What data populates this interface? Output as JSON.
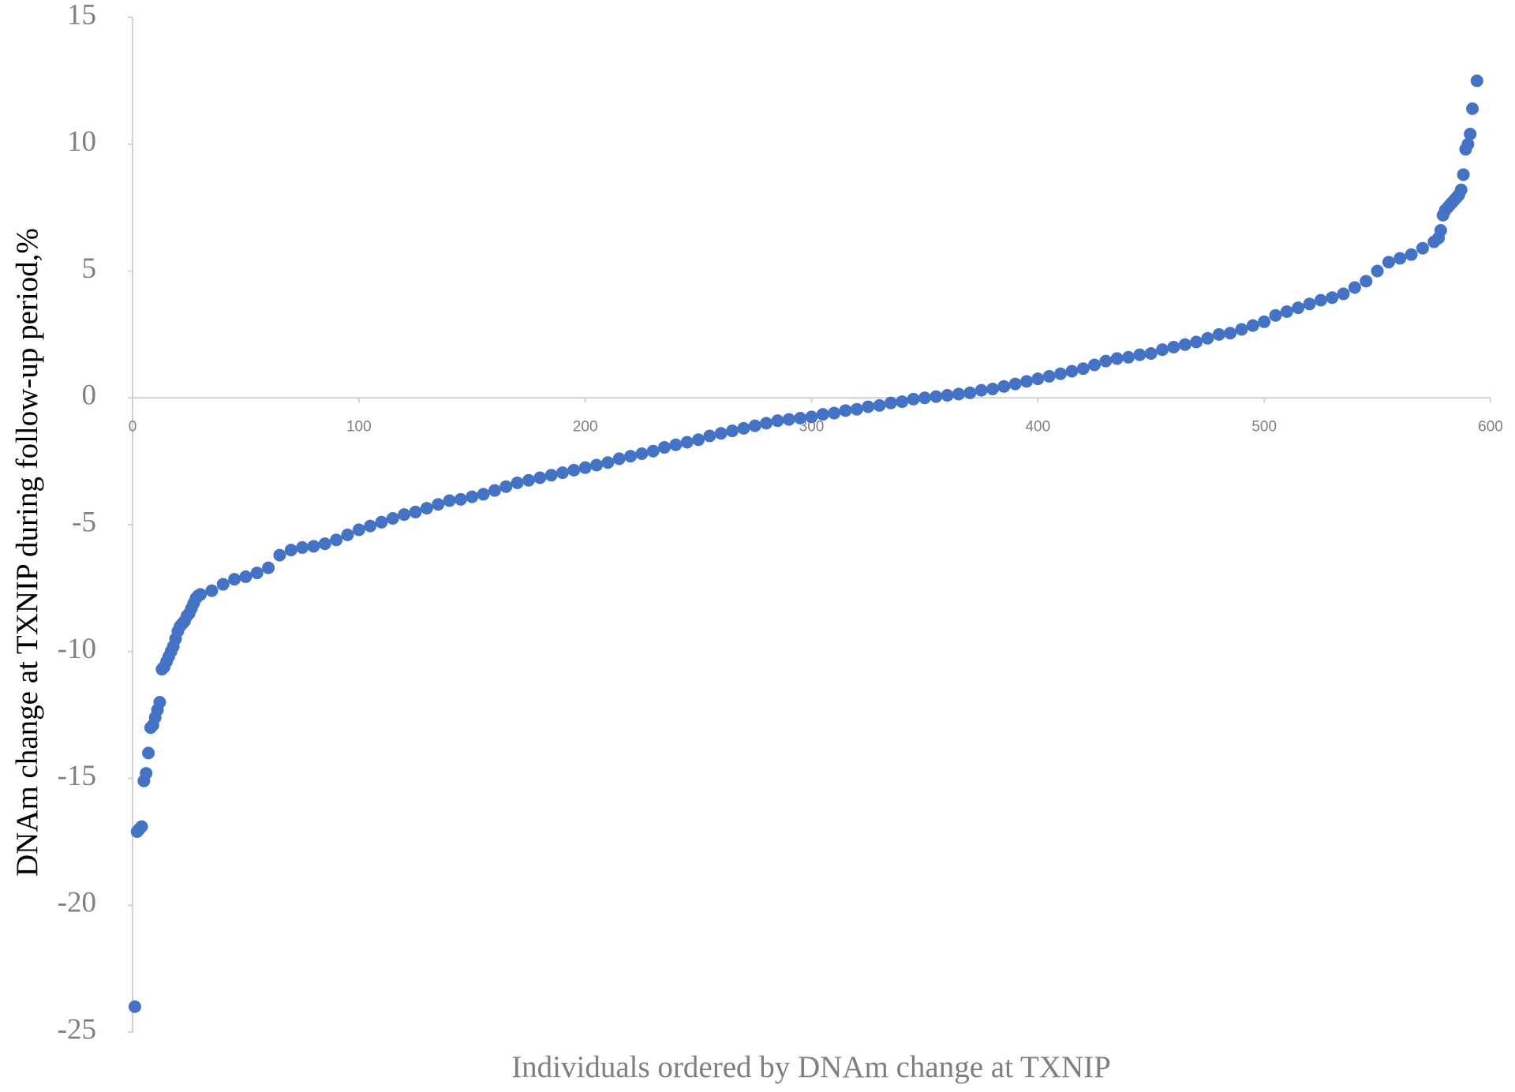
{
  "chart_data": {
    "type": "scatter",
    "x_label": "Individuals ordered by DNAm change at TXNIP",
    "y_label": "DNAm change at TXNIP during follow-up period,%",
    "color": "#4472c4",
    "xlim": [
      0,
      600
    ],
    "xticks": [
      0,
      100,
      200,
      300,
      400,
      500,
      600
    ],
    "ylim": [
      -25,
      15
    ],
    "yticks": [
      -25,
      -20,
      -15,
      -10,
      -5,
      0,
      5,
      10,
      15
    ],
    "grid": false,
    "x": [
      1,
      2,
      3,
      4,
      5,
      6,
      7,
      8,
      9,
      10,
      11,
      12,
      13,
      14,
      15,
      16,
      17,
      18,
      19,
      20,
      21,
      22,
      23,
      24,
      25,
      26,
      27,
      28,
      29,
      30,
      35,
      40,
      45,
      50,
      55,
      60,
      65,
      70,
      75,
      80,
      85,
      90,
      95,
      100,
      105,
      110,
      115,
      120,
      125,
      130,
      135,
      140,
      145,
      150,
      155,
      160,
      165,
      170,
      175,
      180,
      185,
      190,
      195,
      200,
      205,
      210,
      215,
      220,
      225,
      230,
      235,
      240,
      245,
      250,
      255,
      260,
      265,
      270,
      275,
      280,
      285,
      290,
      295,
      300,
      305,
      310,
      315,
      320,
      325,
      330,
      335,
      340,
      345,
      350,
      355,
      360,
      365,
      370,
      375,
      380,
      385,
      390,
      395,
      400,
      405,
      410,
      415,
      420,
      425,
      430,
      435,
      440,
      445,
      450,
      455,
      460,
      465,
      470,
      475,
      480,
      485,
      490,
      495,
      500,
      505,
      510,
      515,
      520,
      525,
      530,
      535,
      540,
      545,
      550,
      555,
      560,
      565,
      570,
      575,
      577,
      578,
      579,
      580,
      581,
      582,
      583,
      584,
      585,
      586,
      587,
      588,
      589,
      590,
      591,
      592,
      594
    ],
    "values": [
      -24,
      -17.1,
      -17,
      -16.9,
      -15.1,
      -14.8,
      -14,
      -13,
      -12.9,
      -12.6,
      -12.3,
      -12,
      -10.7,
      -10.6,
      -10.4,
      -10.2,
      -10,
      -9.8,
      -9.5,
      -9.2,
      -9,
      -8.9,
      -8.8,
      -8.6,
      -8.5,
      -8.3,
      -8.1,
      -7.9,
      -7.8,
      -7.75,
      -7.6,
      -7.35,
      -7.15,
      -7.05,
      -6.9,
      -6.7,
      -6.2,
      -6.0,
      -5.9,
      -5.85,
      -5.75,
      -5.6,
      -5.4,
      -5.2,
      -5.05,
      -4.9,
      -4.75,
      -4.6,
      -4.5,
      -4.35,
      -4.2,
      -4.05,
      -4.0,
      -3.9,
      -3.8,
      -3.65,
      -3.5,
      -3.35,
      -3.25,
      -3.15,
      -3.05,
      -2.95,
      -2.85,
      -2.75,
      -2.65,
      -2.55,
      -2.4,
      -2.3,
      -2.2,
      -2.1,
      -1.95,
      -1.85,
      -1.75,
      -1.65,
      -1.5,
      -1.4,
      -1.3,
      -1.2,
      -1.1,
      -1.0,
      -0.9,
      -0.85,
      -0.8,
      -0.75,
      -0.65,
      -0.6,
      -0.5,
      -0.45,
      -0.35,
      -0.3,
      -0.2,
      -0.15,
      -0.05,
      0,
      0.05,
      0.1,
      0.15,
      0.2,
      0.3,
      0.35,
      0.45,
      0.55,
      0.65,
      0.75,
      0.85,
      0.95,
      1.05,
      1.15,
      1.3,
      1.45,
      1.55,
      1.6,
      1.7,
      1.75,
      1.9,
      2.0,
      2.1,
      2.2,
      2.35,
      2.5,
      2.55,
      2.7,
      2.85,
      3.0,
      3.25,
      3.4,
      3.55,
      3.7,
      3.85,
      3.95,
      4.1,
      4.35,
      4.6,
      5.0,
      5.35,
      5.5,
      5.65,
      5.9,
      6.15,
      6.3,
      6.6,
      7.2,
      7.4,
      7.5,
      7.6,
      7.7,
      7.8,
      7.9,
      8.0,
      8.2,
      8.8,
      9.8,
      10.0,
      10.4,
      11.4,
      12.5
    ]
  }
}
